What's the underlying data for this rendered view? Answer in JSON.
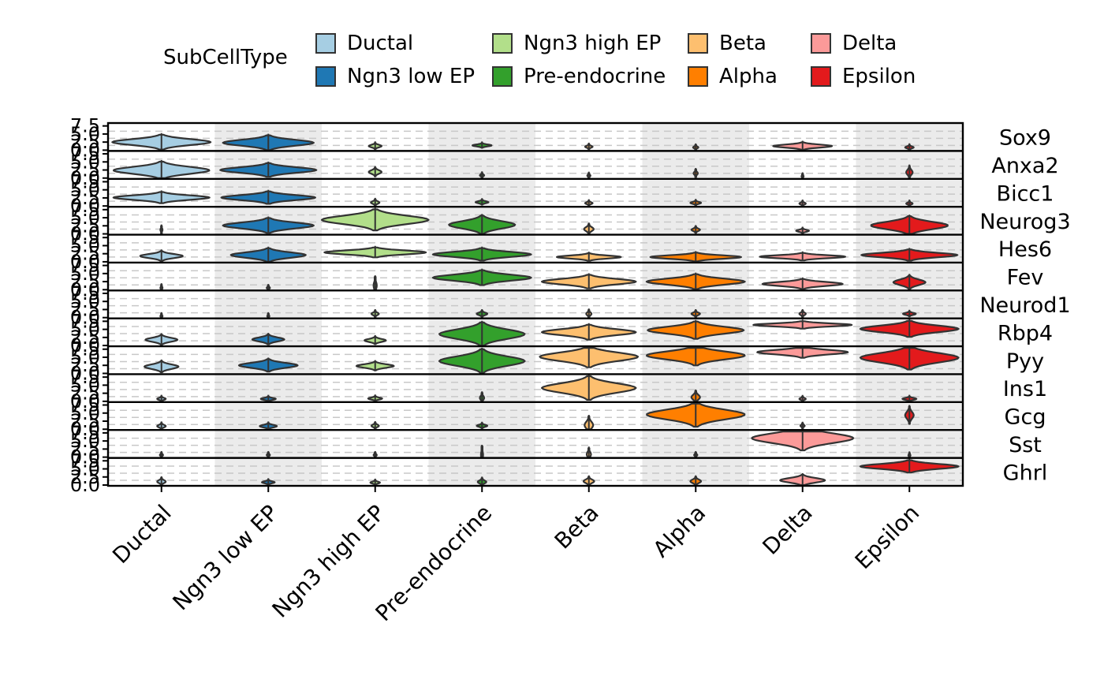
{
  "legend": {
    "title": "SubCellType",
    "items": [
      {
        "label": "Ductal",
        "color": "#a6cee3"
      },
      {
        "label": "Ngn3 low EP",
        "color": "#1f78b4"
      },
      {
        "label": "Ngn3 high EP",
        "color": "#b2df8a"
      },
      {
        "label": "Pre-endocrine",
        "color": "#33a02c"
      },
      {
        "label": "Beta",
        "color": "#fdbf6f"
      },
      {
        "label": "Alpha",
        "color": "#ff7f00"
      },
      {
        "label": "Delta",
        "color": "#fb9a99"
      },
      {
        "label": "Epsilon",
        "color": "#e31a1c"
      }
    ]
  },
  "chart_data": {
    "type": "violin",
    "categories": [
      "Ductal",
      "Ngn3 low EP",
      "Ngn3 high EP",
      "Pre-endocrine",
      "Beta",
      "Alpha",
      "Delta",
      "Epsilon"
    ],
    "colors": [
      "#a6cee3",
      "#1f78b4",
      "#b2df8a",
      "#33a02c",
      "#fdbf6f",
      "#ff7f00",
      "#fb9a99",
      "#e31a1c"
    ],
    "y_ticks": [
      "0.0",
      "2.5",
      "5.0",
      "7.5"
    ],
    "ylim": [
      0,
      7.5
    ],
    "shaded_columns": [
      1,
      3,
      5,
      7
    ],
    "grid": "dashed horizontal",
    "legend_position": "top",
    "genes": [
      {
        "name": "Sox9",
        "violins": [
          {
            "center": 2.2,
            "width": 0.92,
            "extent": 0.6
          },
          {
            "center": 2.0,
            "width": 0.85,
            "extent": 0.6
          },
          {
            "center": 1.0,
            "width": 0.12,
            "extent": 0.25
          },
          {
            "center": 1.2,
            "width": 0.18,
            "extent": 0.18
          },
          {
            "center": 0.8,
            "width": 0.07,
            "extent": 0.2
          },
          {
            "center": 0.6,
            "width": 0.05,
            "extent": 0.12
          },
          {
            "center": 1.0,
            "width": 0.55,
            "extent": 0.3
          },
          {
            "center": 0.6,
            "width": 0.08,
            "extent": 0.2
          }
        ]
      },
      {
        "name": "Anxa2",
        "violins": [
          {
            "center": 2.1,
            "width": 0.9,
            "extent": 0.7
          },
          {
            "center": 2.2,
            "width": 0.9,
            "extent": 0.55
          },
          {
            "center": 1.6,
            "width": 0.12,
            "extent": 0.35
          },
          {
            "center": 0.6,
            "width": 0.04,
            "extent": 0.15
          },
          {
            "center": 0.5,
            "width": 0.03,
            "extent": 0.15
          },
          {
            "center": 1.2,
            "width": 0.04,
            "extent": 0.3
          },
          {
            "center": 0.3,
            "width": 0.02,
            "extent": 0.1
          },
          {
            "center": 1.5,
            "width": 0.06,
            "extent": 0.5
          }
        ]
      },
      {
        "name": "Bicc1",
        "violins": [
          {
            "center": 2.3,
            "width": 0.9,
            "extent": 0.45
          },
          {
            "center": 2.3,
            "width": 0.88,
            "extent": 0.5
          },
          {
            "center": 0.8,
            "width": 0.08,
            "extent": 0.25
          },
          {
            "center": 0.9,
            "width": 0.12,
            "extent": 0.2
          },
          {
            "center": 0.6,
            "width": 0.07,
            "extent": 0.18
          },
          {
            "center": 0.7,
            "width": 0.1,
            "extent": 0.15
          },
          {
            "center": 0.5,
            "width": 0.06,
            "extent": 0.12
          },
          {
            "center": 0.5,
            "width": 0.06,
            "extent": 0.12
          }
        ]
      },
      {
        "name": "Neurog3",
        "violins": [
          {
            "center": 1.0,
            "width": 0.02,
            "extent": 0.3
          },
          {
            "center": 2.3,
            "width": 0.85,
            "extent": 0.6
          },
          {
            "center": 4.0,
            "width": 1.0,
            "extent": 0.85
          },
          {
            "center": 2.5,
            "width": 0.62,
            "extent": 0.75
          },
          {
            "center": 1.2,
            "width": 0.09,
            "extent": 0.4
          },
          {
            "center": 1.0,
            "width": 0.08,
            "extent": 0.25
          },
          {
            "center": 0.7,
            "width": 0.12,
            "extent": 0.2
          },
          {
            "center": 2.3,
            "width": 0.72,
            "extent": 0.75
          }
        ]
      },
      {
        "name": "Hes6",
        "violins": [
          {
            "center": 1.5,
            "width": 0.4,
            "extent": 0.4
          },
          {
            "center": 1.8,
            "width": 0.7,
            "extent": 0.55
          },
          {
            "center": 2.6,
            "width": 0.95,
            "extent": 0.4
          },
          {
            "center": 2.0,
            "width": 0.92,
            "extent": 0.5
          },
          {
            "center": 1.2,
            "width": 0.6,
            "extent": 0.3
          },
          {
            "center": 1.2,
            "width": 0.85,
            "extent": 0.35
          },
          {
            "center": 1.3,
            "width": 0.8,
            "extent": 0.3
          },
          {
            "center": 1.8,
            "width": 0.9,
            "extent": 0.45
          }
        ]
      },
      {
        "name": "Fev",
        "violins": [
          {
            "center": 0.3,
            "width": 0.02,
            "extent": 0.25
          },
          {
            "center": 0.3,
            "width": 0.03,
            "extent": 0.15
          },
          {
            "center": 1.0,
            "width": 0.03,
            "extent": 0.7
          },
          {
            "center": 3.4,
            "width": 0.92,
            "extent": 0.6
          },
          {
            "center": 2.2,
            "width": 0.88,
            "extent": 0.55
          },
          {
            "center": 2.2,
            "width": 0.92,
            "extent": 0.6
          },
          {
            "center": 1.5,
            "width": 0.75,
            "extent": 0.4
          },
          {
            "center": 2.0,
            "width": 0.3,
            "extent": 0.55
          }
        ]
      },
      {
        "name": "Neurod1",
        "violins": [
          {
            "center": 0.2,
            "width": 0.02,
            "extent": 0.1
          },
          {
            "center": 0.2,
            "width": 0.02,
            "extent": 0.1
          },
          {
            "center": 0.9,
            "width": 0.07,
            "extent": 0.25
          },
          {
            "center": 0.9,
            "width": 0.1,
            "extent": 0.25
          },
          {
            "center": 0.9,
            "width": 0.05,
            "extent": 0.3
          },
          {
            "center": 0.9,
            "width": 0.08,
            "extent": 0.25
          },
          {
            "center": 0.9,
            "width": 0.06,
            "extent": 0.25
          },
          {
            "center": 0.9,
            "width": 0.12,
            "extent": 0.2
          }
        ]
      },
      {
        "name": "Rbp4",
        "violins": [
          {
            "center": 1.5,
            "width": 0.3,
            "extent": 0.4
          },
          {
            "center": 1.6,
            "width": 0.3,
            "extent": 0.4
          },
          {
            "center": 1.3,
            "width": 0.2,
            "extent": 0.3
          },
          {
            "center": 3.2,
            "width": 0.8,
            "extent": 0.95
          },
          {
            "center": 3.8,
            "width": 0.88,
            "extent": 0.6
          },
          {
            "center": 4.4,
            "width": 0.9,
            "extent": 0.7
          },
          {
            "center": 6.0,
            "width": 0.92,
            "extent": 0.3
          },
          {
            "center": 4.8,
            "width": 0.92,
            "extent": 0.65
          }
        ]
      },
      {
        "name": "Pyy",
        "violins": [
          {
            "center": 1.8,
            "width": 0.32,
            "extent": 0.45
          },
          {
            "center": 2.2,
            "width": 0.55,
            "extent": 0.5
          },
          {
            "center": 2.0,
            "width": 0.35,
            "extent": 0.35
          },
          {
            "center": 3.5,
            "width": 0.8,
            "extent": 0.95
          },
          {
            "center": 4.8,
            "width": 0.92,
            "extent": 0.85
          },
          {
            "center": 5.2,
            "width": 0.92,
            "extent": 0.8
          },
          {
            "center": 6.2,
            "width": 0.85,
            "extent": 0.45
          },
          {
            "center": 4.5,
            "width": 0.92,
            "extent": 0.95
          }
        ]
      },
      {
        "name": "Ins1",
        "violins": [
          {
            "center": 0.5,
            "width": 0.08,
            "extent": 0.2
          },
          {
            "center": 0.5,
            "width": 0.14,
            "extent": 0.2
          },
          {
            "center": 0.6,
            "width": 0.13,
            "extent": 0.2
          },
          {
            "center": 0.8,
            "width": 0.04,
            "extent": 0.4
          },
          {
            "center": 3.8,
            "width": 0.88,
            "extent": 0.95
          },
          {
            "center": 1.0,
            "width": 0.08,
            "extent": 0.5
          },
          {
            "center": 0.5,
            "width": 0.06,
            "extent": 0.15
          },
          {
            "center": 0.5,
            "width": 0.13,
            "extent": 0.2
          }
        ]
      },
      {
        "name": "Gcg",
        "violins": [
          {
            "center": 0.7,
            "width": 0.08,
            "extent": 0.25
          },
          {
            "center": 0.7,
            "width": 0.16,
            "extent": 0.25
          },
          {
            "center": 0.8,
            "width": 0.07,
            "extent": 0.25
          },
          {
            "center": 0.8,
            "width": 0.1,
            "extent": 0.2
          },
          {
            "center": 1.0,
            "width": 0.08,
            "extent": 0.7
          },
          {
            "center": 4.2,
            "width": 0.92,
            "extent": 0.98
          },
          {
            "center": 0.8,
            "width": 0.04,
            "extent": 0.2
          },
          {
            "center": 4.0,
            "width": 0.08,
            "extent": 0.7
          }
        ]
      },
      {
        "name": "Sst",
        "violins": [
          {
            "center": 0.4,
            "width": 0.03,
            "extent": 0.12
          },
          {
            "center": 0.4,
            "width": 0.03,
            "extent": 0.12
          },
          {
            "center": 0.4,
            "width": 0.03,
            "extent": 0.12
          },
          {
            "center": 0.4,
            "width": 0.02,
            "extent": 0.7
          },
          {
            "center": 0.6,
            "width": 0.04,
            "extent": 0.5
          },
          {
            "center": 0.4,
            "width": 0.03,
            "extent": 0.12
          },
          {
            "center": 5.5,
            "width": 0.95,
            "extent": 0.98
          },
          {
            "center": 0.3,
            "width": 0.02,
            "extent": 0.08
          }
        ]
      },
      {
        "name": "Ghrl",
        "violins": [
          {
            "center": 0.8,
            "width": 0.08,
            "extent": 0.3
          },
          {
            "center": 0.6,
            "width": 0.12,
            "extent": 0.2
          },
          {
            "center": 0.5,
            "width": 0.09,
            "extent": 0.15
          },
          {
            "center": 0.7,
            "width": 0.08,
            "extent": 0.3
          },
          {
            "center": 0.9,
            "width": 0.1,
            "extent": 0.35
          },
          {
            "center": 0.9,
            "width": 0.1,
            "extent": 0.35
          },
          {
            "center": 1.2,
            "width": 0.42,
            "extent": 0.45
          },
          {
            "center": 5.4,
            "width": 0.92,
            "extent": 0.5
          }
        ]
      }
    ]
  }
}
